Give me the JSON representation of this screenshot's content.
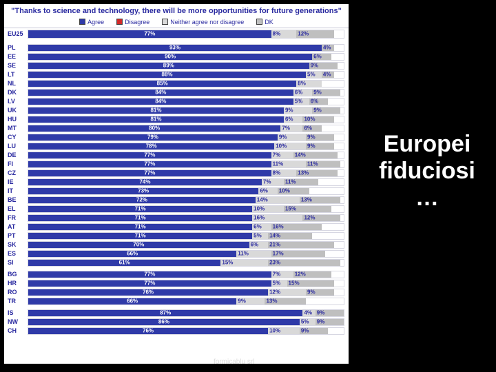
{
  "slide": {
    "headline": "Europei fiduciosi …",
    "footer": "formicablu srl",
    "background": "#000000"
  },
  "chart": {
    "type": "stacked-horizontal-bar",
    "title": "\"Thanks to science and technology, there will be more opportunities for future generations\"",
    "background": "#ffffff",
    "title_color": "#2a2aa0",
    "label_color": "#2a2aa0",
    "title_fontsize": 11,
    "label_fontsize": 9,
    "value_fontsize": 8,
    "bar_border_color": "#d7d7e2",
    "legend": [
      {
        "label": "Agree",
        "color": "#2f3aa8"
      },
      {
        "label": "Disagree",
        "color": "#d22828"
      },
      {
        "label": "Neither agree nor disagree",
        "color": "#d9d9d9"
      },
      {
        "label": "DK",
        "color": "#bfbfbf"
      }
    ],
    "colors": {
      "agree": "#2f3aa8",
      "disagree": "#d22828",
      "neither": "#d9d9d9",
      "dk": "#bfbfbf"
    },
    "groups": [
      {
        "rows": [
          {
            "code": "EU25",
            "agree": 77,
            "disagree": null,
            "neither": 8,
            "dk": 12,
            "eu": true
          }
        ]
      },
      {
        "rows": [
          {
            "code": "PL",
            "agree": 93,
            "disagree": null,
            "neither": null,
            "dk": 4
          },
          {
            "code": "EE",
            "agree": 90,
            "disagree": null,
            "neither": null,
            "dk": 6
          },
          {
            "code": "SE",
            "agree": 89,
            "disagree": null,
            "neither": null,
            "dk": 9
          },
          {
            "code": "LT",
            "agree": 88,
            "disagree": null,
            "neither": 5,
            "dk": 4
          },
          {
            "code": "NL",
            "agree": 85,
            "disagree": null,
            "neither": 8,
            "dk": null
          },
          {
            "code": "DK",
            "agree": 84,
            "disagree": null,
            "neither": 6,
            "dk": 9
          },
          {
            "code": "LV",
            "agree": 84,
            "disagree": null,
            "neither": 5,
            "dk": 6
          },
          {
            "code": "UK",
            "agree": 81,
            "disagree": null,
            "neither": 9,
            "dk": 9
          },
          {
            "code": "HU",
            "agree": 81,
            "disagree": null,
            "neither": 6,
            "dk": 10
          },
          {
            "code": "MT",
            "agree": 80,
            "disagree": null,
            "neither": 7,
            "dk": 6
          },
          {
            "code": "CY",
            "agree": 79,
            "disagree": null,
            "neither": 9,
            "dk": 9
          },
          {
            "code": "LU",
            "agree": 78,
            "disagree": null,
            "neither": 10,
            "dk": 9
          },
          {
            "code": "DE",
            "agree": 77,
            "disagree": null,
            "neither": 7,
            "dk": 14
          },
          {
            "code": "FI",
            "agree": 77,
            "disagree": null,
            "neither": 11,
            "dk": 11
          },
          {
            "code": "CZ",
            "agree": 77,
            "disagree": null,
            "neither": 8,
            "dk": 13
          },
          {
            "code": "IE",
            "agree": 74,
            "disagree": null,
            "neither": 7,
            "dk": 11
          },
          {
            "code": "IT",
            "agree": 73,
            "disagree": null,
            "neither": 6,
            "dk": 10
          },
          {
            "code": "BE",
            "agree": 72,
            "disagree": null,
            "neither": 14,
            "dk": 13
          },
          {
            "code": "EL",
            "agree": 71,
            "disagree": null,
            "neither": 10,
            "dk": 15
          },
          {
            "code": "FR",
            "agree": 71,
            "disagree": null,
            "neither": 16,
            "dk": 12
          },
          {
            "code": "AT",
            "agree": 71,
            "disagree": null,
            "neither": 6,
            "dk": 16
          },
          {
            "code": "PT",
            "agree": 71,
            "disagree": null,
            "neither": 5,
            "dk": 14
          },
          {
            "code": "SK",
            "agree": 70,
            "disagree": null,
            "neither": 6,
            "dk": 21
          },
          {
            "code": "ES",
            "agree": 66,
            "disagree": null,
            "neither": 11,
            "dk": 17
          },
          {
            "code": "SI",
            "agree": 61,
            "disagree": null,
            "neither": 15,
            "dk": 23
          }
        ]
      },
      {
        "rows": [
          {
            "code": "BG",
            "agree": 77,
            "disagree": null,
            "neither": 7,
            "dk": 12
          },
          {
            "code": "HR",
            "agree": 77,
            "disagree": null,
            "neither": 5,
            "dk": 15
          },
          {
            "code": "RO",
            "agree": 76,
            "disagree": null,
            "neither": 12,
            "dk": 9
          },
          {
            "code": "TR",
            "agree": 66,
            "disagree": null,
            "neither": 9,
            "dk": 13
          }
        ]
      },
      {
        "rows": [
          {
            "code": "IS",
            "agree": 87,
            "disagree": null,
            "neither": 4,
            "dk": 9
          },
          {
            "code": "NW",
            "agree": 86,
            "disagree": null,
            "neither": 5,
            "dk": 9
          },
          {
            "code": "CH",
            "agree": 76,
            "disagree": null,
            "neither": 10,
            "dk": 9
          }
        ]
      }
    ]
  }
}
